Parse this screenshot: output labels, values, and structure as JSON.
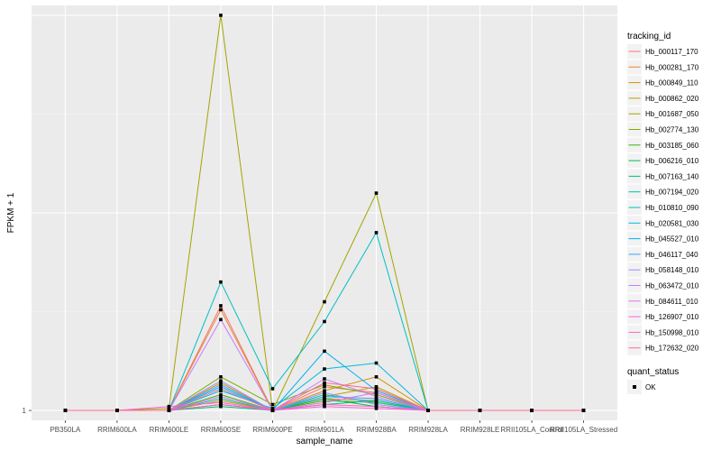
{
  "chart_data": {
    "type": "line",
    "xlabel": "sample_name",
    "ylabel": "FPKM + 1",
    "categories": [
      "PB350LA",
      "RRIM600LA",
      "RRIM600LE",
      "RRIM600SE",
      "RRIM600PE",
      "RRIM901LA",
      "RRIM928BA",
      "RRIM928LA",
      "RRIM928LE",
      "RRII105LA_Control",
      "RRII105LA_Stressed"
    ],
    "y_ticks": [
      {
        "value": 1,
        "label": "1"
      }
    ],
    "ylim": [
      0.5,
      21.5
    ],
    "grid": true,
    "legend_placement": "right",
    "legend": {
      "title": "tracking_id",
      "quant_title": "quant_status",
      "quant_label": "OK"
    },
    "series": [
      {
        "name": "Hb_000117_170",
        "color": "#F8766D",
        "values": [
          1,
          1,
          1,
          6.3,
          1,
          2.2,
          1.9,
          1,
          1,
          1,
          1
        ]
      },
      {
        "name": "Hb_000281_170",
        "color": "#EA8331",
        "values": [
          1,
          1,
          1,
          6.1,
          1,
          1.6,
          1.5,
          1,
          1,
          1,
          1
        ]
      },
      {
        "name": "Hb_000849_110",
        "color": "#D89000",
        "values": [
          1,
          1,
          1,
          2.4,
          1,
          2.0,
          2.7,
          1,
          1,
          1,
          1
        ]
      },
      {
        "name": "Hb_000862_020",
        "color": "#C09B00",
        "values": [
          1,
          1,
          1,
          1.5,
          1,
          1.7,
          2.2,
          1,
          1,
          1,
          1
        ]
      },
      {
        "name": "Hb_001687_050",
        "color": "#A3A500",
        "values": [
          1,
          1,
          1.1,
          21.0,
          1,
          6.5,
          12.0,
          1,
          1,
          1,
          1
        ]
      },
      {
        "name": "Hb_002774_130",
        "color": "#7CAE00",
        "values": [
          1,
          1,
          1,
          2.7,
          1.3,
          2.3,
          1.8,
          1,
          1,
          1,
          1
        ]
      },
      {
        "name": "Hb_003185_060",
        "color": "#39B600",
        "values": [
          1,
          1,
          1,
          1.8,
          1,
          1.5,
          1.4,
          1,
          1,
          1,
          1
        ]
      },
      {
        "name": "Hb_006216_010",
        "color": "#00BB4E",
        "values": [
          1,
          1,
          1,
          1.3,
          1,
          1.6,
          1.2,
          1,
          1,
          1,
          1
        ]
      },
      {
        "name": "Hb_007163_140",
        "color": "#00BF7D",
        "values": [
          1,
          1,
          1,
          1.2,
          1,
          1.3,
          1.5,
          1,
          1,
          1,
          1
        ]
      },
      {
        "name": "Hb_007194_020",
        "color": "#00C1A3",
        "values": [
          1,
          1,
          1,
          1.6,
          1,
          1.8,
          1.4,
          1,
          1,
          1,
          1
        ]
      },
      {
        "name": "Hb_010810_090",
        "color": "#00BFC4",
        "values": [
          1,
          1,
          1,
          7.5,
          2.1,
          5.5,
          10.0,
          1,
          1,
          1,
          1
        ]
      },
      {
        "name": "Hb_020581_030",
        "color": "#00BAE0",
        "values": [
          1,
          1,
          1,
          2.0,
          1.1,
          3.1,
          3.4,
          1,
          1,
          1,
          1
        ]
      },
      {
        "name": "Hb_045527_010",
        "color": "#00B0F6",
        "values": [
          1,
          1,
          1,
          2.2,
          1,
          4.0,
          2.0,
          1,
          1,
          1,
          1
        ]
      },
      {
        "name": "Hb_046117_040",
        "color": "#35A2FF",
        "values": [
          1,
          1,
          1,
          2.3,
          1,
          1.7,
          1.6,
          1,
          1,
          1,
          1
        ]
      },
      {
        "name": "Hb_058148_010",
        "color": "#9590FF",
        "values": [
          1,
          1,
          1,
          2.5,
          1,
          1.9,
          1.3,
          1,
          1,
          1,
          1
        ]
      },
      {
        "name": "Hb_063472_010",
        "color": "#C77CFF",
        "values": [
          1,
          1,
          1,
          5.6,
          1,
          2.6,
          1.7,
          1,
          1,
          1,
          1
        ]
      },
      {
        "name": "Hb_084611_010",
        "color": "#E76BF3",
        "values": [
          1,
          1,
          1,
          1.7,
          1,
          1.4,
          1.9,
          1,
          1,
          1,
          1
        ]
      },
      {
        "name": "Hb_126907_010",
        "color": "#FA62DB",
        "values": [
          1,
          1,
          1.2,
          1.4,
          1,
          1.2,
          1.1,
          1,
          1,
          1,
          1
        ]
      },
      {
        "name": "Hb_150998_010",
        "color": "#FF62BC",
        "values": [
          1,
          1,
          1,
          1.3,
          1,
          1.3,
          1.2,
          1,
          1,
          1,
          1
        ]
      },
      {
        "name": "Hb_172632_020",
        "color": "#FF6C91",
        "values": [
          1,
          1,
          1,
          2.1,
          1,
          2.4,
          2.1,
          1,
          1,
          1,
          1
        ]
      }
    ]
  }
}
